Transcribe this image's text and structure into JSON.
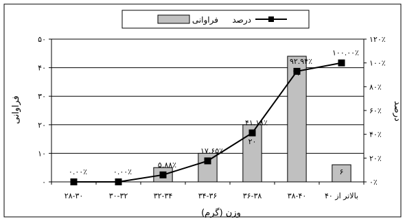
{
  "chart_data": {
    "type": "bar",
    "categories": [
      "۲۸-۳۰",
      "۳۰-۳۲",
      "۳۲-۳۴",
      "۳۴-۳۶",
      "۳۶-۳۸",
      "۳۸-۴۰",
      "بالاتر از ۴۰"
    ],
    "series": [
      {
        "name": "فراوانی",
        "type": "bar",
        "axis": "left",
        "color": "#c0c0c0",
        "values": [
          0,
          0,
          5,
          10,
          20,
          44,
          6
        ],
        "labels": [
          "",
          "",
          "۵",
          "۱۰",
          "۲۰",
          "۴۴",
          "۶"
        ]
      },
      {
        "name": "درصد",
        "type": "line",
        "axis": "right",
        "color": "#000000",
        "values": [
          0,
          0,
          5.88,
          17.65,
          41.18,
          92.94,
          100
        ],
        "labels": [
          "۰.۰۰٪",
          "۰.۰۰٪",
          "۵.۸۸٪",
          "۱۷.۶۵٪",
          "۴۱.۱۸٪",
          "۹۲.۹۴٪",
          "۱۰۰.۰۰٪"
        ]
      }
    ],
    "xlabel": "وزن (گرم)",
    "ylabel": "فراوانی",
    "y2label": "درصد",
    "ylim": [
      0,
      50
    ],
    "yticks": [
      {
        "value": 0,
        "label": "۰"
      },
      {
        "value": 10,
        "label": "۱۰"
      },
      {
        "value": 20,
        "label": "۲۰"
      },
      {
        "value": 30,
        "label": "۳۰"
      },
      {
        "value": 40,
        "label": "۴۰"
      },
      {
        "value": 50,
        "label": "۵۰"
      }
    ],
    "y2lim": [
      0,
      120
    ],
    "y2ticks": [
      {
        "value": 0,
        "label": "۰٪"
      },
      {
        "value": 20,
        "label": "۲۰٪"
      },
      {
        "value": 40,
        "label": "۴۰٪"
      },
      {
        "value": 60,
        "label": "۶۰٪"
      },
      {
        "value": 80,
        "label": "۸۰٪"
      },
      {
        "value": 100,
        "label": "۱۰۰٪"
      },
      {
        "value": 120,
        "label": "۱۲۰٪"
      }
    ],
    "grid": true,
    "legend_position": "top"
  }
}
